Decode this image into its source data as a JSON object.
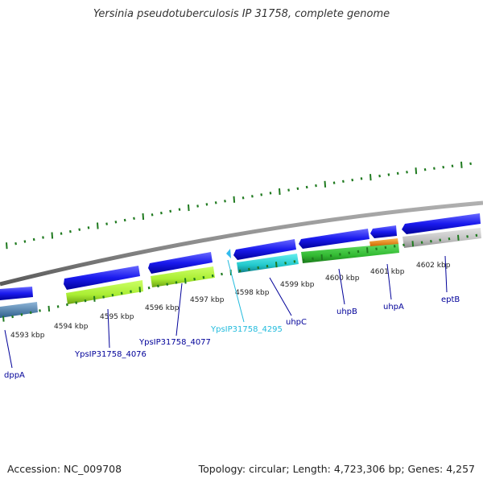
{
  "title": "Yersinia pseudotuberculosis IP 31758, complete genome",
  "footer": {
    "accession": "Accession: NC_009708",
    "summary": "Topology: circular; Length: 4,723,306 bp; Genes: 4,257"
  },
  "kbp_labels": [
    "4593 kbp",
    "4594 kbp",
    "4595 kbp",
    "4596 kbp",
    "4597 kbp",
    "4598 kbp",
    "4599 kbp",
    "4600 kbp",
    "4601 kbp",
    "4602 kbp"
  ],
  "genes": [
    {
      "name": "dppA",
      "color": "#000099"
    },
    {
      "name": "YpsIP31758_4076",
      "color": "#000099"
    },
    {
      "name": "YpsIP31758_4077",
      "color": "#000099"
    },
    {
      "name": "YpsIP31758_4295",
      "color": "#22bbdd"
    },
    {
      "name": "uhpC",
      "color": "#000099"
    },
    {
      "name": "uhpB",
      "color": "#000099"
    },
    {
      "name": "uhpA",
      "color": "#000099"
    },
    {
      "name": "eptB",
      "color": "#000099"
    }
  ],
  "colors": {
    "cds": "#1a1aee",
    "backbone": "#8c8c8c",
    "ticks": "#1f7a1f",
    "dppA_feature": "#4a7fae",
    "yps4076_feature": "#aaee33",
    "yps4077_feature": "#aaee33",
    "uhpC_feature": "#22c8cc",
    "uhpB_feature": "#33bb33",
    "uhpA_feature": "#ee8811",
    "eptB_feature": "#c0c0c0"
  }
}
